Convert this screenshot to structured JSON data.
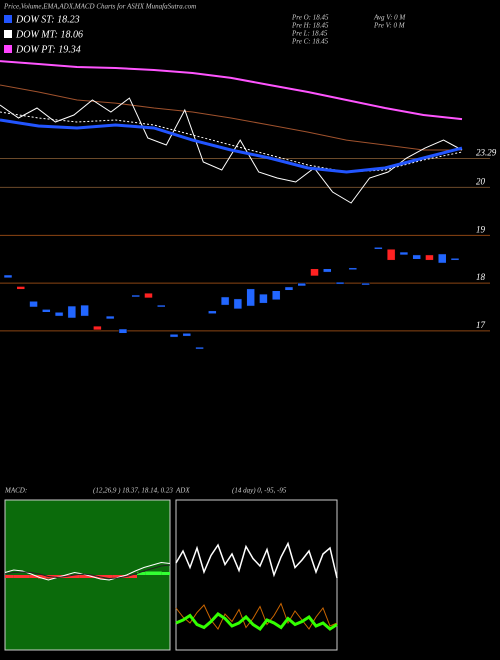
{
  "header": {
    "title": "Price,Volume,EMA,ADX,MACD Charts for ASHX MunafaSutra.com",
    "legend": [
      {
        "label": "DOW ST: 18.23",
        "color": "#2255ff"
      },
      {
        "label": "DOW MT: 18.06",
        "color": "#ffffff"
      },
      {
        "label": "DOW PT: 19.34",
        "color": "#ff44ff"
      }
    ],
    "stats": [
      "Pre  O: 18.45",
      "Pre  H: 18.45",
      "Pre  L: 18.45",
      "Pre  C: 18.45",
      "Avg V: 0  M",
      "Pre  V: 0  M"
    ]
  },
  "chart_data": [
    {
      "type": "line",
      "ylim": [
        18,
        34.5
      ],
      "yticks": [
        {
          "value": 23.29,
          "label": "23.29"
        },
        20
      ],
      "grid": true,
      "grid_color": "#6b4a2a",
      "series": [
        {
          "color": "#ff55ff",
          "width": 2,
          "values": [
            34.38,
            34.04,
            33.7,
            33.59,
            33.36,
            33.02,
            32.46,
            31.65,
            30.86,
            29.95,
            29.04,
            28.24,
            27.78
          ]
        },
        {
          "color": "#a0522d",
          "width": 1,
          "values": [
            31.65,
            30.86,
            29.95,
            29.6,
            29.04,
            28.58,
            27.9,
            27.1,
            26.3,
            25.39,
            24.83,
            24.26,
            24.26
          ]
        },
        {
          "color": "#ffffff",
          "width": 1,
          "dash": "2,2",
          "values": [
            28.58,
            27.9,
            27.44,
            27.67,
            27.1,
            25.96,
            24.83,
            23.69,
            22.55,
            21.75,
            21.98,
            23.12,
            24.03
          ]
        },
        {
          "color": "#ffffff",
          "width": 1,
          "values": [
            29.38,
            27.9,
            29.04,
            27.44,
            28.24,
            29.95,
            28.58,
            30.17,
            25.62,
            24.83,
            28.81,
            22.89,
            21.98,
            25.39,
            21.75,
            21.07,
            20.62,
            22.21,
            19.48,
            18.23,
            21.07,
            21.75,
            23.35,
            24.48,
            25.39,
            24.26
          ]
        },
        {
          "color": "#2255ff",
          "width": 3,
          "values": [
            27.67,
            26.99,
            26.76,
            27.1,
            26.76,
            25.39,
            24.26,
            23.35,
            22.21,
            21.75,
            22.21,
            23.35,
            24.48
          ]
        }
      ]
    },
    {
      "type": "candlestick",
      "ylim": [
        16.6,
        19.3
      ],
      "yticks": [
        19,
        18,
        17
      ],
      "grid": true,
      "grid_color": "#8b4513",
      "up_color": "#2266ff",
      "down_color": "#ff2222",
      "open": [
        18.11,
        17.93,
        17.5,
        17.39,
        17.31,
        17.27,
        17.31,
        17.1,
        17.25,
        16.95,
        17.71,
        17.79,
        17.5,
        16.87,
        16.89,
        16.62,
        17.36,
        17.54,
        17.46,
        17.52,
        17.58,
        17.65,
        17.85,
        17.94,
        18.3,
        18.23,
        17.98,
        18.28,
        17.96,
        18.71,
        18.71,
        18.59,
        18.5,
        18.59,
        18.42,
        18.48
      ],
      "close": [
        18.17,
        17.87,
        17.62,
        17.45,
        17.39,
        17.52,
        17.54,
        17.02,
        17.31,
        17.04,
        17.75,
        17.69,
        17.54,
        16.93,
        16.95,
        16.66,
        17.42,
        17.71,
        17.67,
        17.88,
        17.77,
        17.84,
        17.92,
        18.0,
        18.15,
        18.3,
        18.02,
        18.32,
        18.0,
        18.75,
        18.48,
        18.65,
        18.59,
        18.48,
        18.61,
        18.52
      ]
    },
    {
      "type": "macd",
      "title": "MACD:",
      "subtitle": "(12,26,9 ) 18.37, 18.14, 0.23",
      "ylim": [
        -1.5,
        1.5
      ],
      "background": "#0b6b0b",
      "series": [
        {
          "color": "#ffffff",
          "values": [
            0.05,
            0.1,
            0.08,
            0.02,
            -0.05,
            -0.1,
            -0.05,
            0,
            0.05,
            0.02,
            -0.03,
            -0.08,
            -0.1,
            -0.05,
            0,
            0.08,
            0.15,
            0.2,
            0.25,
            0.23
          ]
        },
        {
          "color": "#222222",
          "values": [
            0.02,
            0.05,
            0.06,
            0.05,
            0.02,
            -0.03,
            -0.05,
            -0.03,
            0,
            0.02,
            0,
            -0.04,
            -0.07,
            -0.06,
            -0.03,
            0.02,
            0.08,
            0.13,
            0.18,
            0.2
          ]
        }
      ],
      "histogram": [
        -0.06,
        -0.06,
        -0.06,
        -0.06,
        -0.07,
        -0.07,
        -0.06,
        -0.06,
        -0.06,
        -0.06,
        -0.06,
        -0.07,
        -0.07,
        -0.06,
        -0.06,
        -0.06,
        0.06,
        0.07,
        0.07,
        0.06
      ],
      "hist_up": "#33ff33",
      "hist_down": "#ff3333"
    },
    {
      "type": "adx",
      "title": "ADX",
      "subtitle": "(14 day) 0, -95, -95",
      "ylim": [
        0,
        100
      ],
      "background": "#000000",
      "series": [
        {
          "color": "#ffffff",
          "width": 1.5,
          "values": [
            58,
            66,
            55,
            68,
            52,
            63,
            70,
            57,
            64,
            53,
            69,
            61,
            56,
            67,
            50,
            62,
            71,
            55,
            60,
            66,
            52,
            64,
            68,
            48
          ]
        },
        {
          "color": "#cc6600",
          "width": 1,
          "values": [
            28,
            22,
            18,
            25,
            30,
            20,
            14,
            24,
            19,
            27,
            15,
            21,
            29,
            17,
            23,
            31,
            18,
            26,
            20,
            14,
            22,
            28,
            16,
            18
          ]
        },
        {
          "color": "#33ff00",
          "width": 3,
          "values": [
            18,
            20,
            23,
            17,
            15,
            19,
            24,
            21,
            16,
            18,
            22,
            17,
            14,
            20,
            18,
            15,
            21,
            17,
            19,
            22,
            16,
            18,
            14,
            17
          ]
        }
      ]
    }
  ]
}
